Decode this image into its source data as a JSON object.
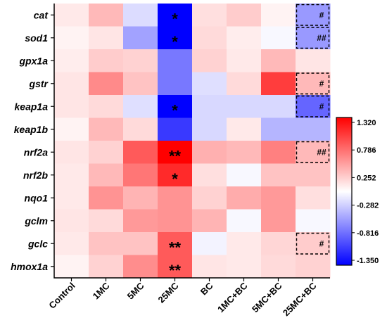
{
  "chart_data": {
    "type": "heatmap",
    "title": "",
    "rows": [
      "cat",
      "sod1",
      "gpx1a",
      "gstr",
      "keap1a",
      "keap1b",
      "nrf2a",
      "nrf2b",
      "nqo1",
      "gclm",
      "gclc",
      "hmox1a"
    ],
    "columns": [
      "Control",
      "1MC",
      "5MC",
      "25MC",
      "BC",
      "1MC+BC",
      "5MC+BC",
      "25MC+BC"
    ],
    "values": [
      [
        0.1,
        0.35,
        -0.2,
        -1.35,
        0.15,
        0.25,
        0.05,
        -0.55
      ],
      [
        0.05,
        0.12,
        -0.5,
        -1.35,
        0.18,
        0.08,
        -0.05,
        -0.55
      ],
      [
        0.08,
        0.25,
        0.22,
        -0.72,
        0.22,
        0.1,
        0.35,
        0.12
      ],
      [
        0.12,
        0.6,
        0.3,
        -0.72,
        -0.18,
        0.18,
        1.0,
        0.35
      ],
      [
        0.12,
        0.18,
        -0.18,
        -1.35,
        -0.22,
        -0.22,
        -0.22,
        -0.82
      ],
      [
        0.05,
        0.35,
        0.18,
        -1.05,
        -0.22,
        0.1,
        -0.4,
        -0.4
      ],
      [
        0.12,
        0.22,
        0.85,
        1.32,
        0.4,
        0.35,
        0.65,
        0.35
      ],
      [
        0.1,
        0.35,
        0.7,
        1.1,
        0.15,
        -0.05,
        0.3,
        0.3
      ],
      [
        0.1,
        0.55,
        0.38,
        0.55,
        0.22,
        0.42,
        0.52,
        0.15
      ],
      [
        0.12,
        0.18,
        0.52,
        0.55,
        0.38,
        -0.05,
        0.52,
        -0.05
      ],
      [
        0.1,
        0.3,
        0.3,
        0.85,
        -0.08,
        0.1,
        0.2,
        0.25
      ],
      [
        0.05,
        0.22,
        0.58,
        0.85,
        0.12,
        0.1,
        0.18,
        0.22
      ]
    ],
    "annotations": [
      {
        "row": "cat",
        "column": "25MC",
        "text": "*"
      },
      {
        "row": "sod1",
        "column": "25MC",
        "text": "*"
      },
      {
        "row": "keap1a",
        "column": "25MC",
        "text": "*"
      },
      {
        "row": "nrf2a",
        "column": "25MC",
        "text": "**"
      },
      {
        "row": "nrf2b",
        "column": "25MC",
        "text": "*"
      },
      {
        "row": "gclc",
        "column": "25MC",
        "text": "**"
      },
      {
        "row": "hmox1a",
        "column": "25MC",
        "text": "**"
      },
      {
        "row": "cat",
        "column": "25MC+BC",
        "text": "#"
      },
      {
        "row": "sod1",
        "column": "25MC+BC",
        "text": "##"
      },
      {
        "row": "gstr",
        "column": "25MC+BC",
        "text": "#"
      },
      {
        "row": "keap1a",
        "column": "25MC+BC",
        "text": "#"
      },
      {
        "row": "nrf2a",
        "column": "25MC+BC",
        "text": "##"
      },
      {
        "row": "gclc",
        "column": "25MC+BC",
        "text": "#"
      }
    ],
    "colorbar": {
      "min": -1.35,
      "max": 1.32,
      "ticks": [
        "1.320",
        "0.786",
        "0.252",
        "-0.282",
        "-0.816",
        "-1.350"
      ],
      "colors": {
        "low": "#0000ff",
        "mid": "#ffffff",
        "high": "#ff0000"
      }
    },
    "grid": false,
    "legend": "right"
  }
}
